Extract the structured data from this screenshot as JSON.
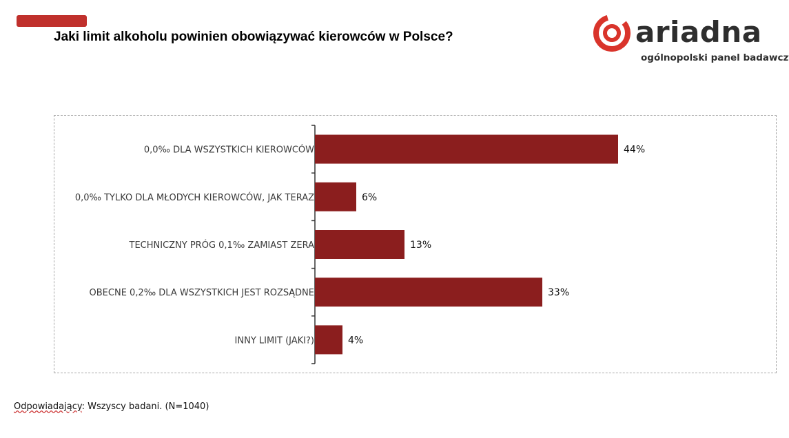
{
  "header": {
    "title": "Jaki limit alkoholu powinien obowiązywać kierowców w Polsce?",
    "accent_color": "#c0302c"
  },
  "logo": {
    "wordmark": "ariadna",
    "tagline": "ogólnopolski panel badawczy",
    "icon": "ariadna-spiral-icon"
  },
  "chart_data": {
    "type": "bar",
    "orientation": "horizontal",
    "title": "",
    "xlabel": "",
    "ylabel": "",
    "categories": [
      "0,0‰ DLA WSZYSTKICH KIEROWCÓW",
      "0,0‰ TYLKO DLA MŁODYCH KIEROWCÓW, JAK TERAZ",
      "TECHNICZNY PRÓG 0,1‰ ZAMIAST ZERA",
      "OBECNE 0,2‰ DLA WSZYSTKICH JEST ROZSĄDNE",
      "INNY LIMIT (JAKI?)"
    ],
    "values": [
      44,
      6,
      13,
      33,
      4
    ],
    "value_labels": [
      "44%",
      "6%",
      "13%",
      "33%",
      "4%"
    ],
    "unit": "%",
    "xlim": [
      0,
      50
    ],
    "bar_color": "#8b1e1e",
    "grid": false,
    "legend": "none"
  },
  "footnote": {
    "label": "Odpowiadający",
    "text": ": Wszyscy badani. (N=1040)"
  }
}
